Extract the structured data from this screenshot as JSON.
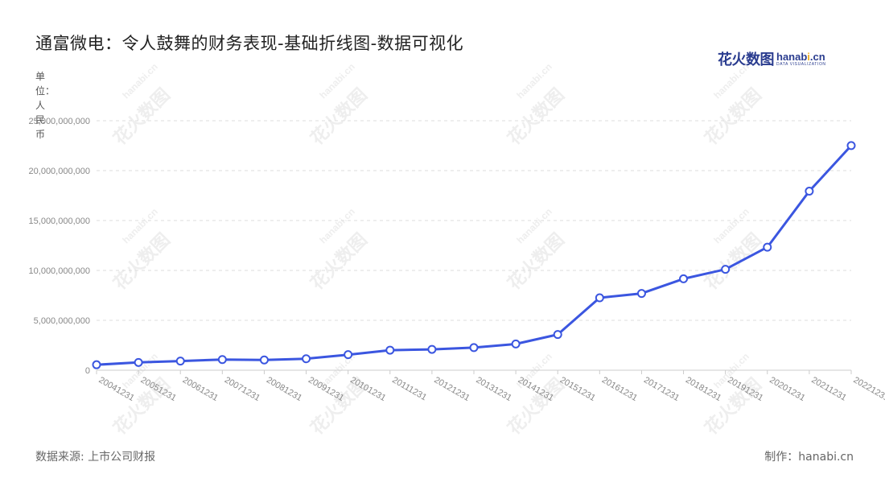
{
  "header": {
    "title": "通富微电：令人鼓舞的财务表现-基础折线图-数据可视化",
    "logo_cn": "花火数图",
    "logo_en_a": "hanab",
    "logo_en_dot": "i",
    "logo_en_b": ".cn",
    "logo_sub": "DATA VISUALIZATION"
  },
  "watermark": {
    "cn": "花火数图",
    "en": "hanabi.cn"
  },
  "footer": {
    "source": "数据来源: 上市公司财报",
    "credit": "制作：hanabi.cn"
  },
  "colors": {
    "line": "#3b56e0",
    "grid": "#dddddd",
    "axis": "#cccccc",
    "marker_fill": "#ffffff"
  },
  "chart_data": {
    "type": "line",
    "title": "通富微电：令人鼓舞的财务表现-基础折线图-数据可视化",
    "xlabel": "",
    "ylabel": "单位：人民币",
    "categories": [
      "20041231",
      "20051231",
      "20061231",
      "20071231",
      "20081231",
      "20091231",
      "20101231",
      "20111231",
      "20121231",
      "20131231",
      "20141231",
      "20151231",
      "20161231",
      "20171231",
      "20181231",
      "20191231",
      "20201231",
      "20211231",
      "20221231"
    ],
    "series": [
      {
        "values": [
          550000000,
          780000000,
          920000000,
          1070000000,
          1030000000,
          1150000000,
          1560000000,
          2010000000,
          2090000000,
          2270000000,
          2630000000,
          3580000000,
          7260000000,
          7690000000,
          9160000000,
          10110000000,
          12330000000,
          17940000000,
          22510000000
        ]
      }
    ],
    "ylim": [
      0,
      25000000000
    ],
    "yticks": [
      0,
      5000000000,
      10000000000,
      15000000000,
      20000000000,
      25000000000
    ],
    "ytick_labels": [
      "0",
      "5,000,000,000",
      "10,000,000,000",
      "15,000,000,000",
      "20,000,000,000",
      "25,000,000,000"
    ],
    "grid": true,
    "legend": "none"
  }
}
